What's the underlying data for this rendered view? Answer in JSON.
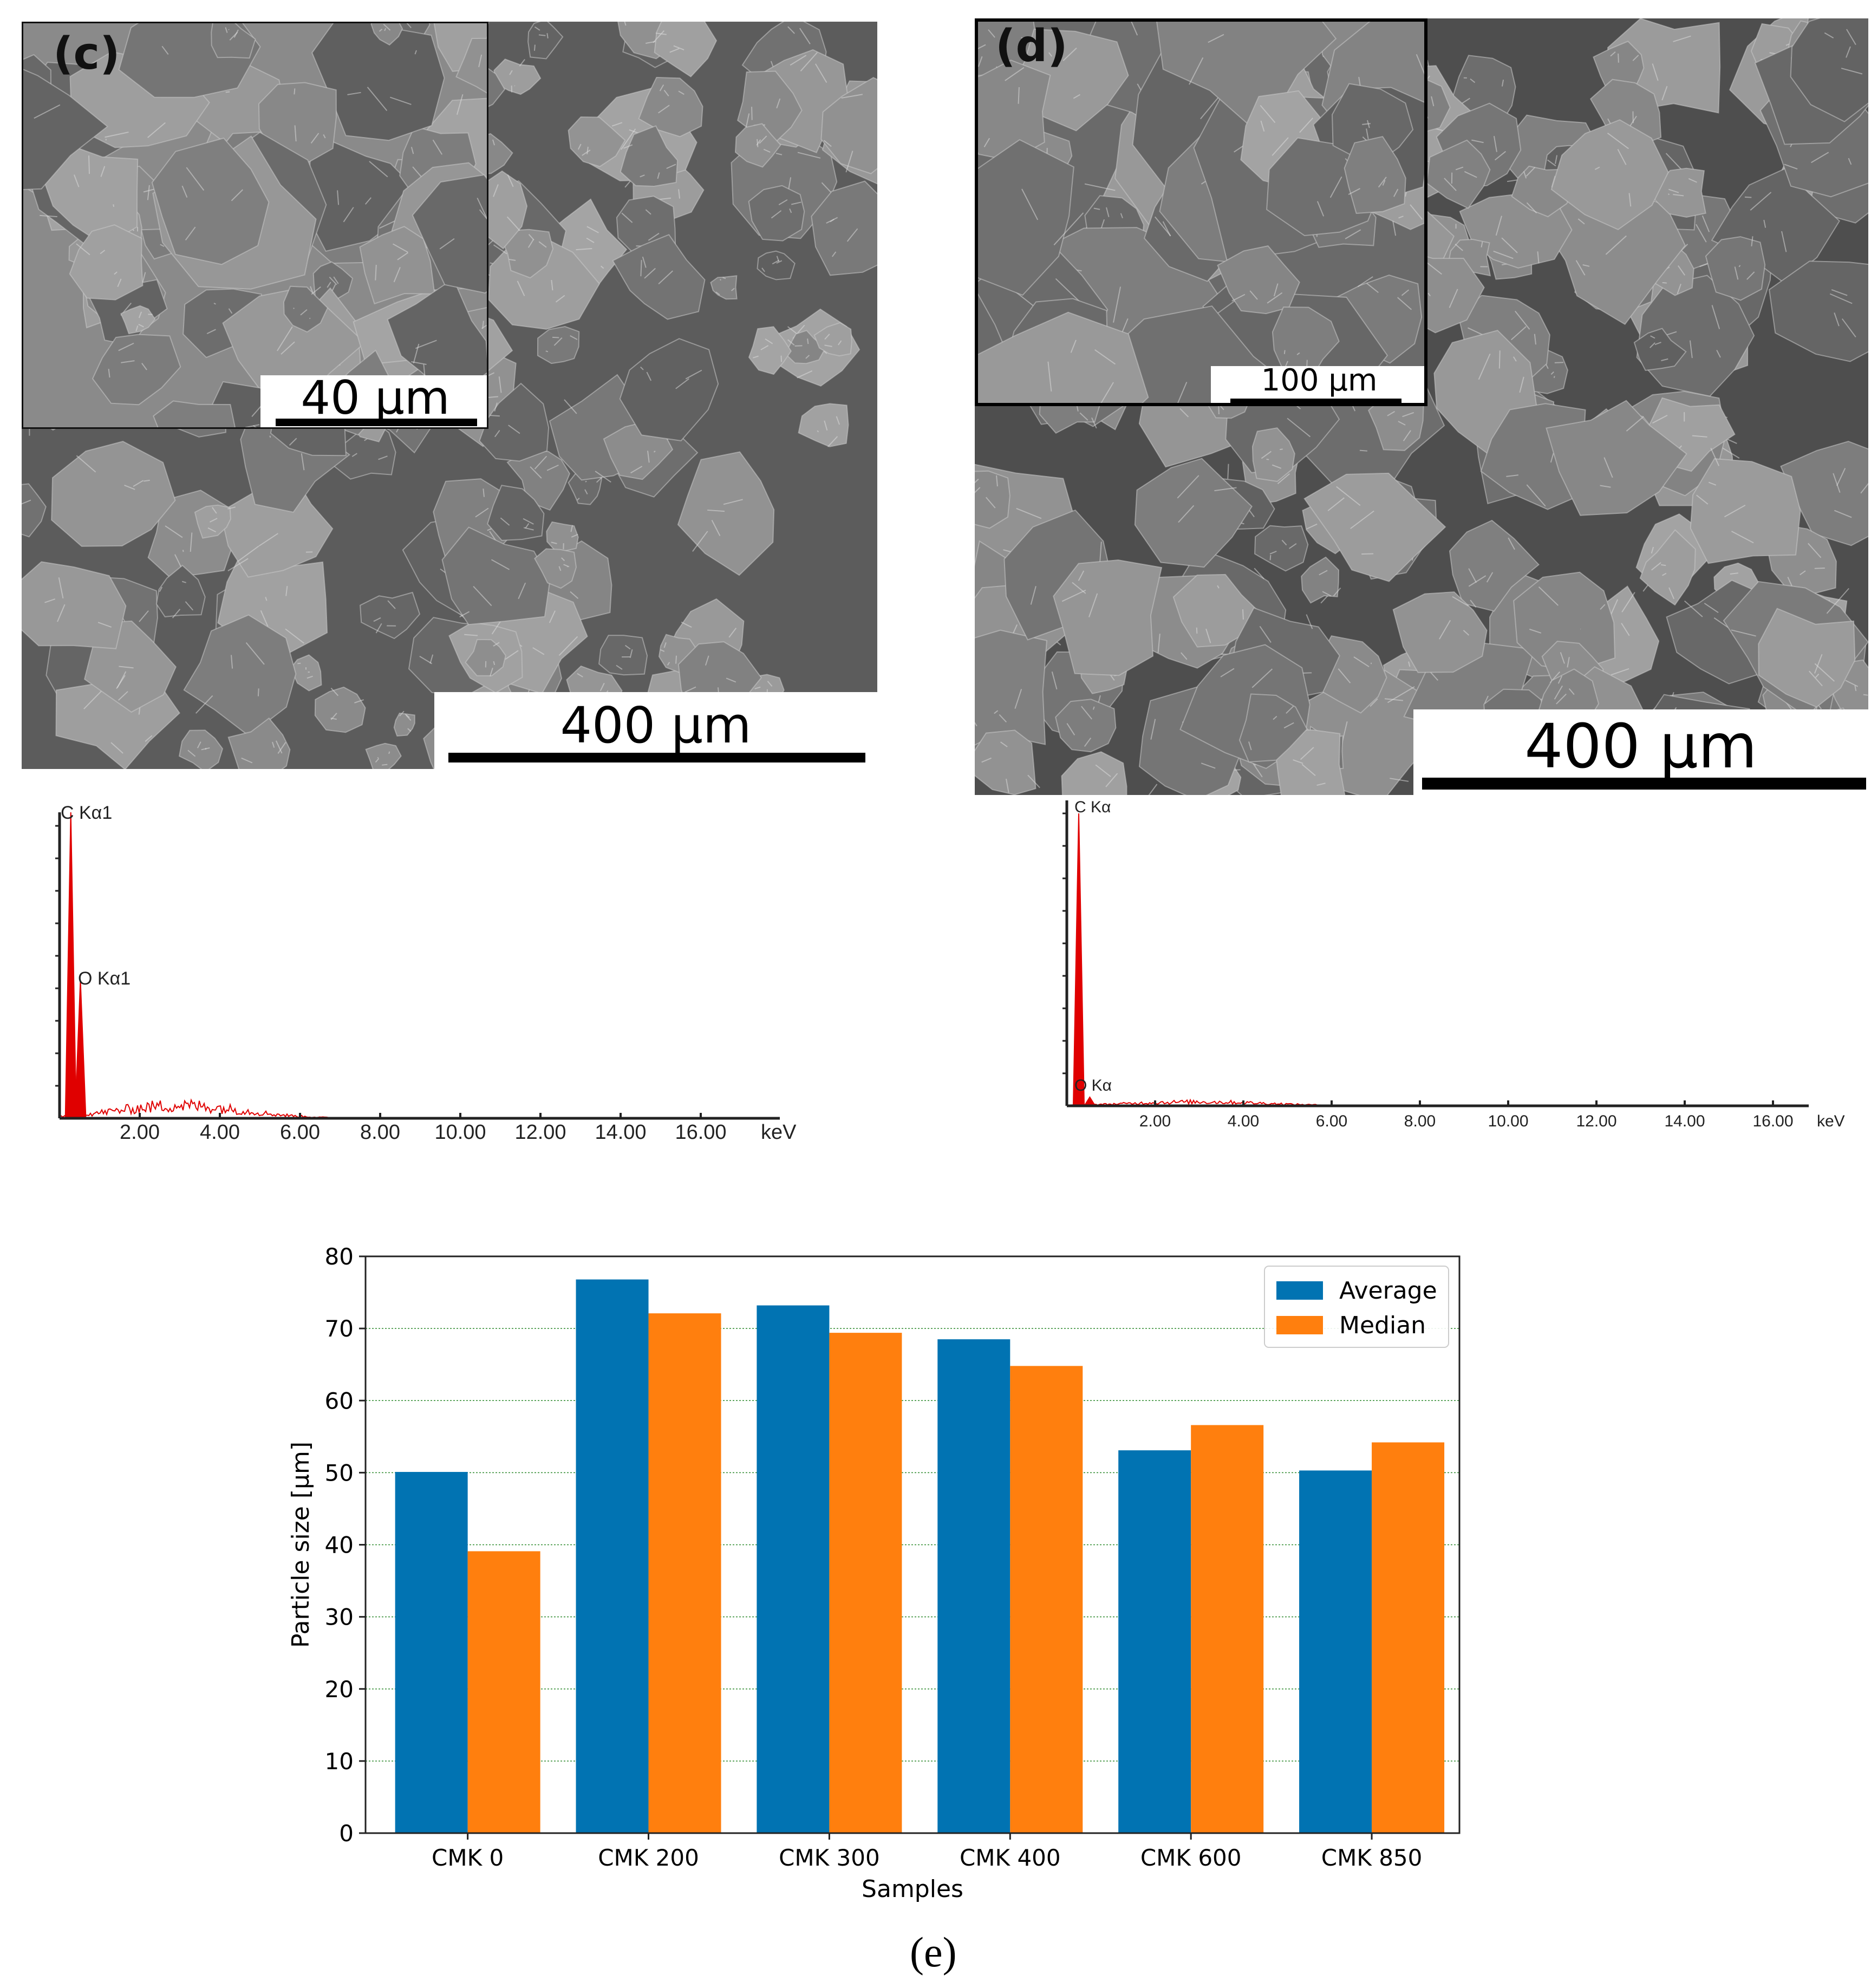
{
  "panel_c": {
    "label": "(c)",
    "inset_scale": "40 μm",
    "main_scale": "400 μm",
    "eds": {
      "peaks": [
        "C Kα1",
        "O Kα1"
      ],
      "ticks": [
        "2.00",
        "4.00",
        "6.00",
        "8.00",
        "10.00",
        "12.00",
        "14.00",
        "16.00"
      ],
      "unit": "keV"
    }
  },
  "panel_d": {
    "label": "(d)",
    "inset_scale": "100 μm",
    "main_scale": "400 μm",
    "eds": {
      "peaks": [
        "C Kα",
        "O Kα"
      ],
      "ticks": [
        "2.00",
        "4.00",
        "6.00",
        "8.00",
        "10.00",
        "12.00",
        "14.00",
        "16.00"
      ],
      "unit": "keV"
    }
  },
  "caption": "(e)",
  "colors": {
    "average": "#0173b2",
    "median": "#ff7f0e",
    "eds_peak": "#e00000"
  },
  "chart_data": {
    "type": "bar",
    "categories": [
      "CMK 0",
      "CMK 200",
      "CMK 300",
      "CMK 400",
      "CMK 600",
      "CMK 850"
    ],
    "series": [
      {
        "name": "Average",
        "values": [
          50.1,
          76.8,
          73.2,
          68.5,
          53.1,
          50.3
        ]
      },
      {
        "name": "Median",
        "values": [
          39.1,
          72.1,
          69.4,
          64.8,
          56.6,
          54.2
        ]
      }
    ],
    "xlabel": "Samples",
    "ylabel": "Particle size [μm]",
    "ylim": [
      0,
      80
    ],
    "yticks": [
      0,
      10,
      20,
      30,
      40,
      50,
      60,
      70,
      80
    ],
    "grid": true,
    "legend": "top-right"
  }
}
